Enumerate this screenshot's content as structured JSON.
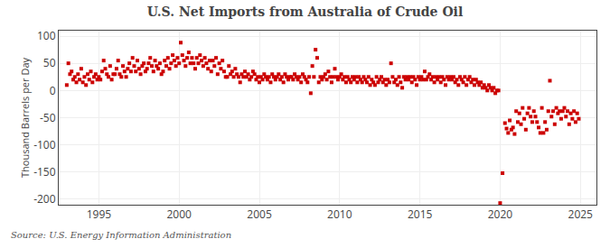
{
  "chart_data": {
    "type": "scatter",
    "title": "U.S. Net Imports from Australia of Crude Oil",
    "ylabel": "Thousand Barrels per Day",
    "annotations": [
      "Source: U.S. Energy Information Administration"
    ],
    "color": "#cc0000",
    "marker": "square",
    "grid": true,
    "xlim": [
      1992.5,
      2026.0
    ],
    "ylim": [
      -210,
      110
    ],
    "xticks": [
      1995,
      2000,
      2005,
      2010,
      2015,
      2020,
      2025
    ],
    "yticks": [
      -200,
      -150,
      -100,
      -50,
      0,
      50,
      100
    ],
    "x": [
      1993.0,
      1993.1,
      1993.2,
      1993.3,
      1993.4,
      1993.5,
      1993.6,
      1993.7,
      1993.8,
      1993.9,
      1994.0,
      1994.1,
      1994.2,
      1994.3,
      1994.4,
      1994.5,
      1994.6,
      1994.7,
      1994.8,
      1994.9,
      1995.0,
      1995.1,
      1995.2,
      1995.3,
      1995.4,
      1995.5,
      1995.6,
      1995.7,
      1995.8,
      1995.9,
      1996.0,
      1996.1,
      1996.2,
      1996.3,
      1996.4,
      1996.5,
      1996.6,
      1996.7,
      1996.8,
      1996.9,
      1997.0,
      1997.1,
      1997.2,
      1997.3,
      1997.4,
      1997.5,
      1997.6,
      1997.7,
      1997.8,
      1997.9,
      1998.0,
      1998.1,
      1998.2,
      1998.3,
      1998.4,
      1998.5,
      1998.6,
      1998.7,
      1998.8,
      1998.9,
      1999.0,
      1999.1,
      1999.2,
      1999.3,
      1999.4,
      1999.5,
      1999.6,
      1999.7,
      1999.8,
      1999.9,
      2000.0,
      2000.1,
      2000.2,
      2000.3,
      2000.4,
      2000.5,
      2000.6,
      2000.7,
      2000.8,
      2000.9,
      2001.0,
      2001.1,
      2001.2,
      2001.3,
      2001.4,
      2001.5,
      2001.6,
      2001.7,
      2001.8,
      2001.9,
      2002.0,
      2002.1,
      2002.2,
      2002.3,
      2002.4,
      2002.5,
      2002.6,
      2002.7,
      2002.8,
      2002.9,
      2003.0,
      2003.1,
      2003.2,
      2003.3,
      2003.4,
      2003.5,
      2003.6,
      2003.7,
      2003.8,
      2003.9,
      2004.0,
      2004.1,
      2004.2,
      2004.3,
      2004.4,
      2004.5,
      2004.6,
      2004.7,
      2004.8,
      2004.9,
      2005.0,
      2005.1,
      2005.2,
      2005.3,
      2005.4,
      2005.5,
      2005.6,
      2005.7,
      2005.8,
      2005.9,
      2006.0,
      2006.1,
      2006.2,
      2006.3,
      2006.4,
      2006.5,
      2006.6,
      2006.7,
      2006.8,
      2006.9,
      2007.0,
      2007.1,
      2007.2,
      2007.3,
      2007.4,
      2007.5,
      2007.6,
      2007.7,
      2007.8,
      2007.9,
      2008.0,
      2008.1,
      2008.2,
      2008.3,
      2008.4,
      2008.5,
      2008.6,
      2008.7,
      2008.8,
      2008.9,
      2009.0,
      2009.1,
      2009.2,
      2009.3,
      2009.4,
      2009.5,
      2009.6,
      2009.7,
      2009.8,
      2009.9,
      2010.0,
      2010.1,
      2010.2,
      2010.3,
      2010.4,
      2010.5,
      2010.6,
      2010.7,
      2010.8,
      2010.9,
      2011.0,
      2011.1,
      2011.2,
      2011.3,
      2011.4,
      2011.5,
      2011.6,
      2011.7,
      2011.8,
      2011.9,
      2012.0,
      2012.1,
      2012.2,
      2012.3,
      2012.4,
      2012.5,
      2012.6,
      2012.7,
      2012.8,
      2012.9,
      2013.0,
      2013.1,
      2013.2,
      2013.3,
      2013.4,
      2013.5,
      2013.6,
      2013.7,
      2013.8,
      2013.9,
      2014.0,
      2014.1,
      2014.2,
      2014.3,
      2014.4,
      2014.5,
      2014.6,
      2014.7,
      2014.8,
      2014.9,
      2015.0,
      2015.1,
      2015.2,
      2015.3,
      2015.4,
      2015.5,
      2015.6,
      2015.7,
      2015.8,
      2015.9,
      2016.0,
      2016.1,
      2016.2,
      2016.3,
      2016.4,
      2016.5,
      2016.6,
      2016.7,
      2016.8,
      2016.9,
      2017.0,
      2017.1,
      2017.2,
      2017.3,
      2017.4,
      2017.5,
      2017.6,
      2017.7,
      2017.8,
      2017.9,
      2018.0,
      2018.1,
      2018.2,
      2018.3,
      2018.4,
      2018.5,
      2018.6,
      2018.7,
      2018.8,
      2018.9,
      2019.0,
      2019.1,
      2019.2,
      2019.3,
      2019.4,
      2019.5,
      2019.6,
      2019.7,
      2019.8,
      2019.9,
      2020.0,
      2020.15,
      2020.3,
      2020.4,
      2020.5,
      2020.6,
      2020.7,
      2020.8,
      2020.9,
      2021.0,
      2021.1,
      2021.2,
      2021.3,
      2021.4,
      2021.5,
      2021.6,
      2021.7,
      2021.8,
      2021.9,
      2022.0,
      2022.1,
      2022.2,
      2022.3,
      2022.4,
      2022.5,
      2022.6,
      2022.7,
      2022.8,
      2022.9,
      2023.0,
      2023.1,
      2023.2,
      2023.3,
      2023.4,
      2023.5,
      2023.6,
      2023.7,
      2023.8,
      2023.9,
      2024.0,
      2024.1,
      2024.2,
      2024.3,
      2024.4,
      2024.5,
      2024.6,
      2024.7,
      2024.8,
      2024.9
    ],
    "values": [
      10,
      50,
      30,
      35,
      20,
      25,
      15,
      30,
      20,
      40,
      15,
      25,
      10,
      30,
      20,
      35,
      15,
      25,
      30,
      20,
      25,
      20,
      35,
      55,
      40,
      30,
      25,
      45,
      20,
      30,
      30,
      40,
      55,
      30,
      25,
      45,
      35,
      25,
      40,
      50,
      35,
      60,
      45,
      35,
      55,
      40,
      30,
      45,
      50,
      35,
      40,
      50,
      60,
      45,
      35,
      55,
      45,
      40,
      50,
      30,
      35,
      55,
      45,
      60,
      40,
      50,
      65,
      55,
      45,
      60,
      50,
      88,
      65,
      55,
      45,
      60,
      70,
      50,
      60,
      50,
      40,
      60,
      50,
      65,
      55,
      45,
      60,
      50,
      40,
      55,
      35,
      55,
      45,
      60,
      30,
      50,
      40,
      55,
      35,
      25,
      25,
      45,
      30,
      35,
      25,
      40,
      30,
      25,
      15,
      30,
      25,
      35,
      25,
      30,
      20,
      25,
      35,
      30,
      20,
      25,
      15,
      25,
      20,
      30,
      25,
      20,
      25,
      15,
      30,
      25,
      20,
      25,
      30,
      20,
      25,
      15,
      30,
      25,
      20,
      25,
      25,
      20,
      30,
      25,
      20,
      25,
      15,
      30,
      25,
      20,
      15,
      25,
      -5,
      45,
      25,
      75,
      60,
      15,
      25,
      20,
      25,
      30,
      20,
      35,
      25,
      15,
      25,
      40,
      25,
      20,
      25,
      30,
      20,
      25,
      15,
      25,
      20,
      15,
      25,
      20,
      25,
      15,
      25,
      20,
      15,
      25,
      20,
      15,
      25,
      10,
      20,
      15,
      10,
      25,
      15,
      20,
      25,
      15,
      20,
      10,
      20,
      15,
      50,
      25,
      15,
      20,
      10,
      25,
      15,
      5,
      25,
      20,
      25,
      20,
      25,
      15,
      25,
      20,
      10,
      25,
      20,
      25,
      20,
      35,
      20,
      25,
      30,
      20,
      25,
      15,
      25,
      20,
      25,
      15,
      25,
      20,
      10,
      25,
      20,
      25,
      20,
      25,
      15,
      20,
      10,
      25,
      20,
      15,
      25,
      10,
      20,
      25,
      15,
      20,
      10,
      20,
      15,
      10,
      15,
      5,
      10,
      5,
      0,
      10,
      5,
      0,
      5,
      -5,
      0,
      0,
      -207,
      -152,
      -60,
      -70,
      -78,
      -55,
      -72,
      -68,
      -80,
      -38,
      -58,
      -42,
      -62,
      -32,
      -52,
      -72,
      -42,
      -32,
      -48,
      -58,
      -38,
      -48,
      -58,
      -68,
      -78,
      -32,
      -78,
      -58,
      -72,
      -38,
      18,
      -48,
      -38,
      -62,
      -32,
      -42,
      -38,
      -52,
      -38,
      -32,
      -48,
      -38,
      -62,
      -42,
      -52,
      -38,
      -58,
      -42,
      -52
    ]
  }
}
